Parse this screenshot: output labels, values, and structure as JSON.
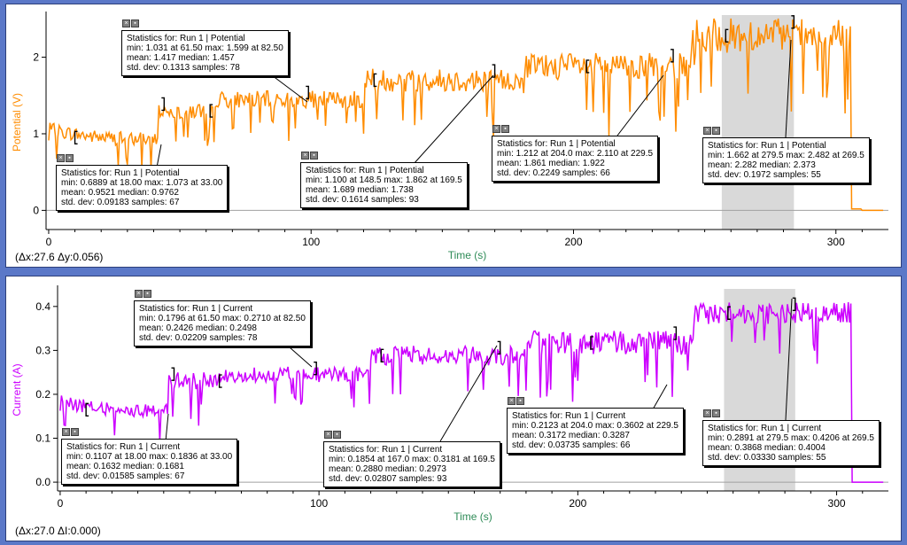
{
  "colors": {
    "potential": "#ff8c00",
    "current": "#cc00ff",
    "axis_title": "#2e8b57",
    "selection": "#d9d9d9"
  },
  "chart_data": [
    {
      "type": "line",
      "series": [
        {
          "name": "Run 1 | Potential"
        }
      ],
      "ylabel": "Potential (V)",
      "xlabel": "Time (s)",
      "xlim": [
        -1,
        320
      ],
      "ylim": [
        -0.25,
        2.55
      ],
      "xticks": [
        "0",
        "100",
        "200",
        "300"
      ],
      "yticks": [
        "0",
        "1",
        "2"
      ],
      "xtick_values": [
        0,
        100,
        200,
        300
      ],
      "ytick_values": [
        0,
        1,
        2
      ],
      "selection": [
        256.5,
        284
      ],
      "delta_readout": "(Δx:27.6 Δy:0.056)",
      "segments": [
        {
          "t0": 0,
          "t1": 42,
          "base": 0.95,
          "amp": 0.18
        },
        {
          "t0": 42,
          "t1": 62,
          "base": 1.3,
          "amp": 0.22
        },
        {
          "t0": 62,
          "t1": 120,
          "base": 1.45,
          "amp": 0.22
        },
        {
          "t0": 120,
          "t1": 180,
          "base": 1.7,
          "amp": 0.3
        },
        {
          "t0": 180,
          "t1": 245,
          "base": 1.88,
          "amp": 0.35
        },
        {
          "t0": 245,
          "t1": 306,
          "base": 2.28,
          "amp": 0.45
        },
        {
          "t0": 306,
          "t1": 310,
          "base": 0.02,
          "amp": 0.0
        },
        {
          "t0": 310,
          "t1": 318,
          "base": 0.0,
          "amp": 0.0
        }
      ],
      "brackets": [
        [
          10,
          44
        ],
        [
          61.5,
          99
        ],
        [
          124,
          170
        ],
        [
          205,
          238
        ],
        [
          258,
          284
        ]
      ],
      "stats": [
        {
          "heading": "Statistics for: Run 1 | Potential",
          "line1": "min: 0.6889 at 18.00 max: 1.073 at 33.00",
          "line2": "mean: 0.9521 median: 0.9762",
          "line3": "std. dev: 0.09183 samples: 67"
        },
        {
          "heading": "Statistics for: Run 1 | Potential",
          "line1": "min: 1.031 at 61.50 max: 1.599 at 82.50",
          "line2": "mean: 1.417 median: 1.457",
          "line3": "std. dev: 0.1313 samples: 78"
        },
        {
          "heading": "Statistics for: Run 1 | Potential",
          "line1": "min: 1.100 at 148.5 max: 1.862 at 169.5",
          "line2": "mean: 1.689 median: 1.738",
          "line3": "std. dev: 0.1614 samples: 93"
        },
        {
          "heading": "Statistics for: Run 1 | Potential",
          "line1": "min: 1.212 at 204.0 max: 2.110 at 229.5",
          "line2": "mean: 1.861 median: 1.922",
          "line3": "std. dev: 0.2249 samples: 66"
        },
        {
          "heading": "Statistics for: Run 1 | Potential",
          "line1": "min: 1.662 at 279.5 max: 2.482 at 269.5",
          "line2": "mean: 2.282 median: 2.373",
          "line3": "std. dev: 0.1972 samples: 55"
        }
      ]
    },
    {
      "type": "line",
      "series": [
        {
          "name": "Run 1 | Current"
        }
      ],
      "ylabel": "Current (A)",
      "xlabel": "Time (s)",
      "xlim": [
        -1,
        320
      ],
      "ylim": [
        -0.02,
        0.44
      ],
      "xticks": [
        "0",
        "100",
        "200",
        "300"
      ],
      "yticks": [
        "0.0",
        "0.1",
        "0.2",
        "0.3",
        "0.4"
      ],
      "xtick_values": [
        0,
        100,
        200,
        300
      ],
      "ytick_values": [
        0,
        0.1,
        0.2,
        0.3,
        0.4
      ],
      "selection": [
        256.5,
        284
      ],
      "delta_readout": "(Δx:27.0 ΔI:0.000)",
      "segments": [
        {
          "t0": 0,
          "t1": 42,
          "base": 0.165,
          "amp": 0.03
        },
        {
          "t0": 42,
          "t1": 62,
          "base": 0.23,
          "amp": 0.04
        },
        {
          "t0": 62,
          "t1": 120,
          "base": 0.245,
          "amp": 0.035
        },
        {
          "t0": 120,
          "t1": 180,
          "base": 0.288,
          "amp": 0.045
        },
        {
          "t0": 180,
          "t1": 245,
          "base": 0.317,
          "amp": 0.055
        },
        {
          "t0": 245,
          "t1": 306,
          "base": 0.385,
          "amp": 0.05
        },
        {
          "t0": 306,
          "t1": 310,
          "base": 0.0,
          "amp": 0.0
        },
        {
          "t0": 310,
          "t1": 318,
          "base": 0.0,
          "amp": 0.0
        }
      ],
      "brackets": [
        [
          10,
          44
        ],
        [
          61.5,
          99
        ],
        [
          124,
          170
        ],
        [
          205,
          238
        ],
        [
          258,
          284
        ]
      ],
      "stats": [
        {
          "heading": "Statistics for: Run 1 | Current",
          "line1": "min: 0.1107 at 18.00 max: 0.1836 at 33.00",
          "line2": "mean: 0.1632 median: 0.1681",
          "line3": "std. dev: 0.01585 samples: 67"
        },
        {
          "heading": "Statistics for: Run 1 | Current",
          "line1": "min: 0.1796 at 61.50 max: 0.2710 at 82.50",
          "line2": "mean: 0.2426 median: 0.2498",
          "line3": "std. dev: 0.02209 samples: 78"
        },
        {
          "heading": "Statistics for: Run 1 | Current",
          "line1": "min: 0.1854 at 167.0 max: 0.3181 at 169.5",
          "line2": "mean: 0.2880 median: 0.2973",
          "line3": "std. dev: 0.02807 samples: 93"
        },
        {
          "heading": "Statistics for: Run 1 | Current",
          "line1": "min: 0.2123 at 204.0 max: 0.3602 at 229.5",
          "line2": "mean: 0.3172 median: 0.3287",
          "line3": "std. dev: 0.03735 samples: 66"
        },
        {
          "heading": "Statistics for: Run 1 | Current",
          "line1": "min: 0.2891 at 279.5 max: 0.4206 at 269.5",
          "line2": "mean: 0.3868 median: 0.4004",
          "line3": "std. dev: 0.03330 samples: 55"
        }
      ]
    }
  ]
}
